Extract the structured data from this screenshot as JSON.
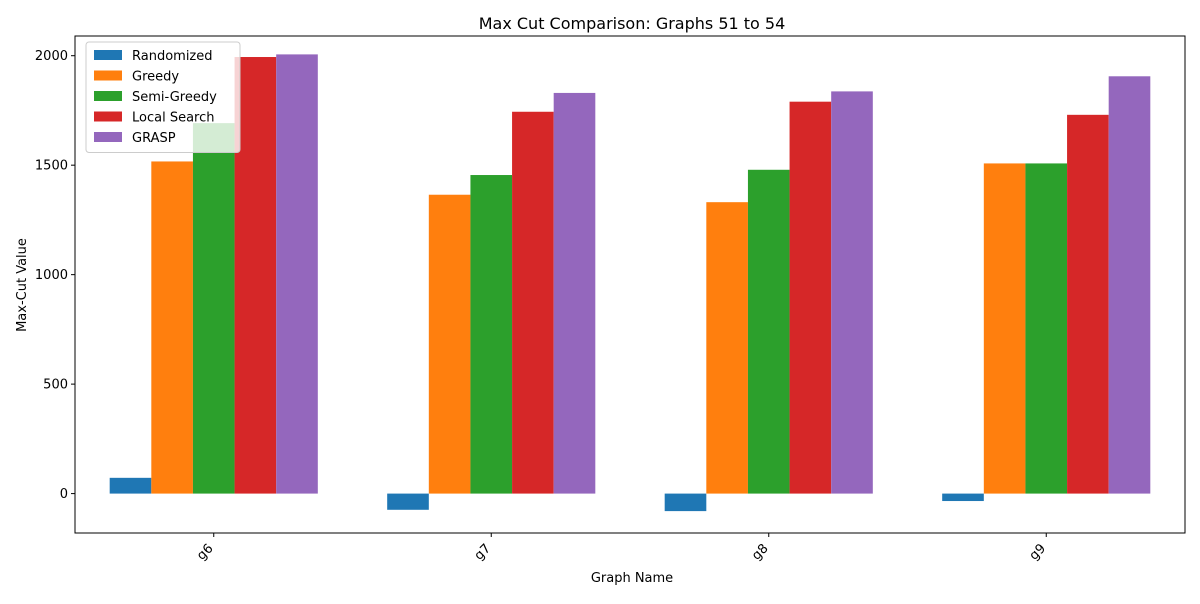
{
  "chart_data": {
    "type": "bar",
    "title": "Max Cut Comparison: Graphs 51 to 54",
    "xlabel": "Graph Name",
    "ylabel": "Max-Cut Value",
    "categories": [
      "g6",
      "g7",
      "g8",
      "g9"
    ],
    "ylim": [
      -180,
      2090
    ],
    "yticks": [
      0,
      500,
      1000,
      1500,
      2000
    ],
    "grid": false,
    "legend_position": "top-left",
    "series": [
      {
        "name": "Randomized",
        "color": "#1f77b4",
        "values": [
          72,
          -74,
          -80,
          -34
        ]
      },
      {
        "name": "Greedy",
        "color": "#ff7f0e",
        "values": [
          1517,
          1365,
          1331,
          1508
        ]
      },
      {
        "name": "Semi-Greedy",
        "color": "#2ca02c",
        "values": [
          1692,
          1455,
          1479,
          1508
        ]
      },
      {
        "name": "Local Search",
        "color": "#d62728",
        "values": [
          1994,
          1744,
          1790,
          1730
        ]
      },
      {
        "name": "GRASP",
        "color": "#9467bd",
        "values": [
          2006,
          1830,
          1837,
          1906
        ]
      }
    ]
  }
}
